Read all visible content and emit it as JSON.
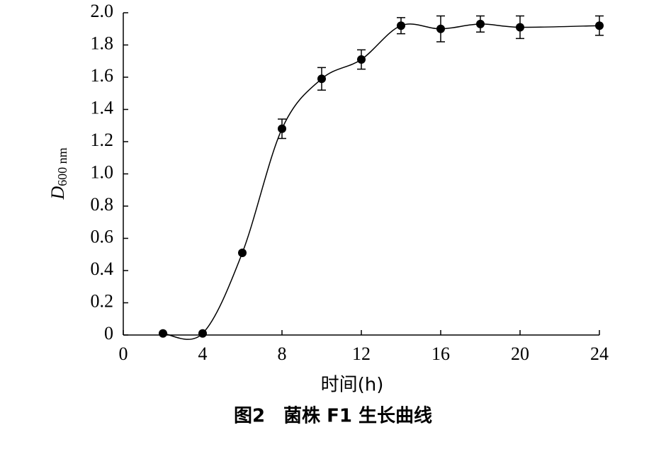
{
  "chart_data": {
    "type": "line",
    "caption": "图2　菌株 F1 生长曲线",
    "x_label": "时间(h)",
    "y_label": {
      "text": "D",
      "subscript": "600 nm"
    },
    "x": [
      2,
      4,
      6,
      8,
      10,
      12,
      14,
      16,
      18,
      20,
      24
    ],
    "series": [
      {
        "color": "#000000",
        "values": [
          0.01,
          0.01,
          0.51,
          1.28,
          1.59,
          1.71,
          1.92,
          1.9,
          1.93,
          1.91,
          1.92
        ],
        "errors": [
          0,
          0,
          0,
          0.06,
          0.07,
          0.06,
          0.05,
          0.08,
          0.05,
          0.07,
          0.06
        ]
      }
    ],
    "xlim": [
      0,
      24
    ],
    "xticks": [
      0,
      4,
      8,
      12,
      16,
      20,
      24
    ],
    "ylim": [
      0,
      2
    ],
    "yticks": [
      0,
      0.2,
      0.4,
      0.6,
      0.8,
      {
        "value": 1,
        "label": "1.0"
      },
      1.2,
      1.4,
      1.6,
      1.8,
      {
        "value": 2,
        "label": "2.0"
      }
    ],
    "grid": false
  }
}
